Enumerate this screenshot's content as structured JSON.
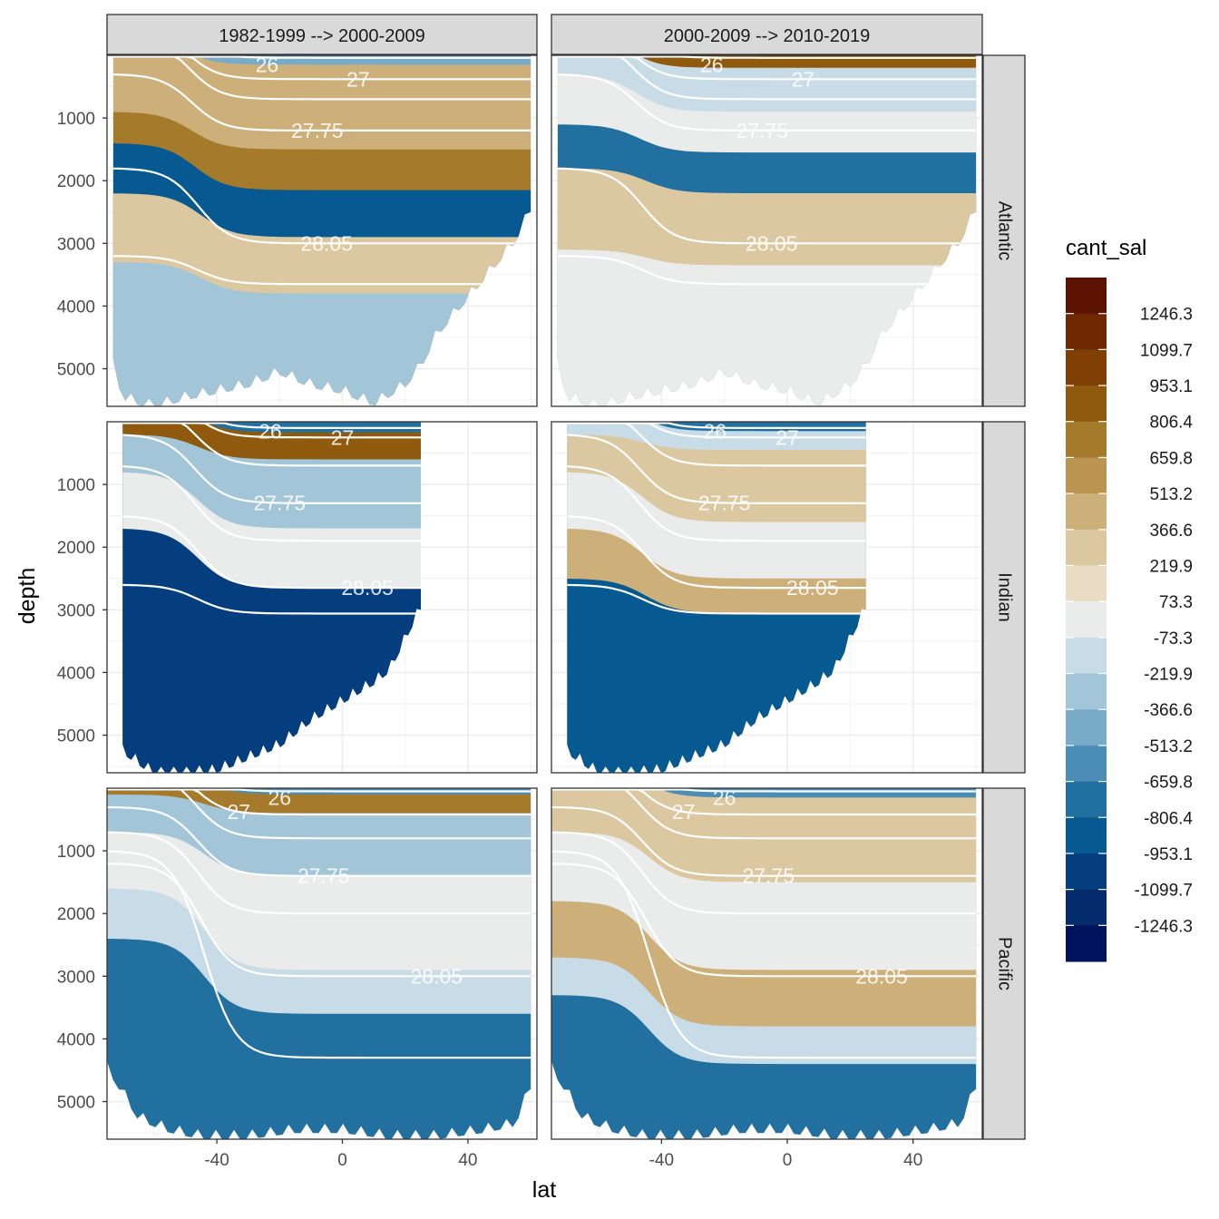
{
  "chart_data": {
    "type": "heatmap",
    "subtype": "faceted filled contour sections with density isolines",
    "xlabel": "lat",
    "ylabel": "depth",
    "xlim": [
      -75,
      62
    ],
    "ylim": [
      5600,
      0
    ],
    "y_reversed": true,
    "x_ticks": [
      -40,
      0,
      40
    ],
    "y_ticks": [
      1000,
      2000,
      3000,
      4000,
      5000
    ],
    "grid": true,
    "facet_columns": [
      "1982-1999 --> 2000-2009",
      "2000-2009 --> 2010-2019"
    ],
    "facet_rows": [
      "Atlantic",
      "Indian",
      "Pacific"
    ],
    "legend": {
      "title": "cant_sal",
      "position": "right",
      "labels": [
        "1246.3",
        "1099.7",
        "953.1",
        "806.4",
        "659.8",
        "513.2",
        "366.6",
        "219.9",
        "73.3",
        "-73.3",
        "-219.9",
        "-366.6",
        "-513.2",
        "-659.8",
        "-806.4",
        "-953.1",
        "-1099.7",
        "-1246.3"
      ],
      "bins_top_to_bottom": [
        "#5c1200",
        "#6f2802",
        "#804005",
        "#8f5a0d",
        "#a67a2b",
        "#bb944f",
        "#cdb079",
        "#dcc8a0",
        "#e9dcc4",
        "#e9ecea",
        "#c8dce8",
        "#a2c5d8",
        "#78abc8",
        "#4c8db5",
        "#22709f",
        "#065a91",
        "#043e7e",
        "#042c6c",
        "#00125c"
      ]
    },
    "isolines": {
      "color": "#ffffff",
      "labels": [
        "26",
        "27",
        "27.75",
        "28.05"
      ]
    }
  }
}
